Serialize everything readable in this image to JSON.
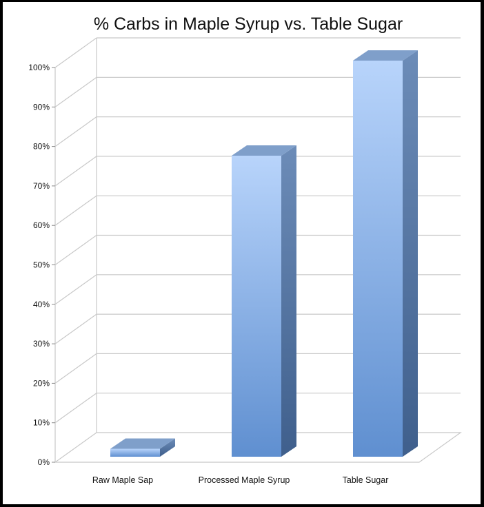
{
  "chart_data": {
    "type": "bar",
    "title": "% Carbs in Maple Syrup vs. Table Sugar",
    "categories": [
      "Raw Maple Sap",
      "Processed Maple Syrup",
      "Table Sugar"
    ],
    "values": [
      2,
      76,
      100
    ],
    "value_unit": "%",
    "ylim": [
      0,
      100
    ],
    "yticks": [
      "0%",
      "10%",
      "20%",
      "30%",
      "40%",
      "50%",
      "60%",
      "70%",
      "80%",
      "90%",
      "100%"
    ],
    "grid": true,
    "style": "3d-column",
    "colors": {
      "bar_front_top": "#b8d4fb",
      "bar_front_bottom": "#5f8fd0",
      "bar_side": "#4f6f99",
      "bar_top": "#7f9fca",
      "grid": "#c8c8c8"
    }
  }
}
